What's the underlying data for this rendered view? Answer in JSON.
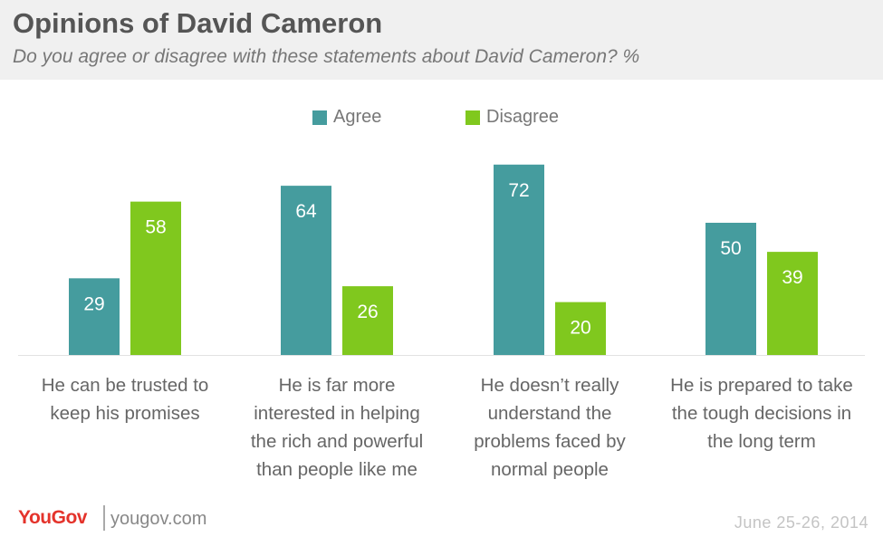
{
  "header": {
    "title": "Opinions of David Cameron",
    "subtitle": "Do you agree or disagree with these statements about David Cameron? %"
  },
  "legend": {
    "agree": "Agree",
    "disagree": "Disagree"
  },
  "colors": {
    "agree": "#459c9e",
    "disagree": "#80c81e"
  },
  "chart_data": {
    "type": "bar",
    "categories": [
      "He can be trusted to keep his promises",
      "He is far more interested in helping the rich and powerful than people like me",
      "He doesn’t really understand the problems faced by normal people",
      "He is prepared to take the tough decisions in the long term"
    ],
    "series": [
      {
        "name": "Agree",
        "values": [
          29,
          64,
          72,
          50
        ]
      },
      {
        "name": "Disagree",
        "values": [
          58,
          26,
          20,
          39
        ]
      }
    ],
    "title": "Opinions of David Cameron",
    "subtitle": "Do you agree or disagree with these statements about David Cameron? %",
    "ylim": [
      0,
      80
    ],
    "grid": false,
    "legend_position": "top-center"
  },
  "category_lines": [
    [
      "He can be trusted to",
      "keep his promises"
    ],
    [
      "He is far more",
      "interested in helping",
      "the rich and powerful",
      "than people like me"
    ],
    [
      "He doesn’t really",
      "understand the",
      "problems faced by",
      "normal people"
    ],
    [
      "He is prepared to take",
      "the tough decisions in",
      "the long term"
    ]
  ],
  "footer": {
    "logo": "YouGov",
    "site": "yougov.com",
    "date": "June 25-26, 2014"
  }
}
